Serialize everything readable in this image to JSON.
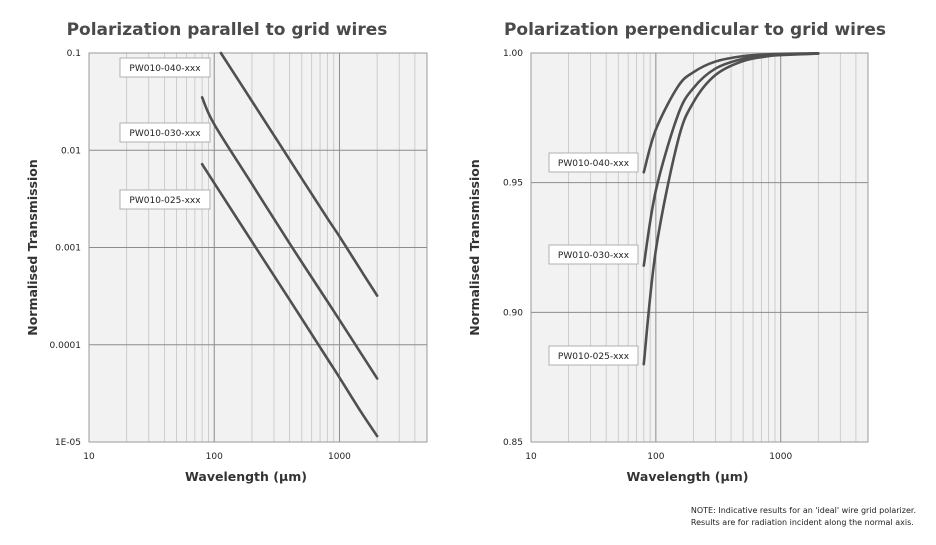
{
  "chart_data": [
    {
      "type": "line",
      "title": "Polarization parallel to grid wires",
      "xlabel": "Wavelength (µm)",
      "ylabel": "Normalised Transmission",
      "x_scale": "log",
      "y_scale": "log",
      "xlim": [
        10,
        5000
      ],
      "ylim": [
        1e-05,
        0.1
      ],
      "x_ticks": [
        10,
        100,
        1000
      ],
      "x_tick_labels": [
        "10",
        "100",
        "1000"
      ],
      "y_ticks": [
        0.1,
        0.01,
        0.001,
        0.0001,
        1e-05
      ],
      "y_tick_labels": [
        "0.1",
        "0.01",
        "0.001",
        "0.0001",
        "1E-05"
      ],
      "grid": true,
      "series": [
        {
          "name": "PW010-040-xxx",
          "x": [
            113,
            200,
            400,
            800,
            1000,
            1500,
            2000
          ],
          "y": [
            0.1,
            0.032,
            0.008,
            0.002,
            0.0013,
            0.00057,
            0.00032
          ]
        },
        {
          "name": "PW010-030-xxx",
          "x": [
            80,
            100,
            200,
            400,
            800,
            1000,
            1500,
            2000
          ],
          "y": [
            0.035,
            0.0185,
            0.0045,
            0.0011,
            0.00028,
            0.00018,
            8e-05,
            4.5e-05
          ]
        },
        {
          "name": "PW010-025-xxx",
          "x": [
            80,
            100,
            200,
            400,
            800,
            1000,
            1500,
            2000
          ],
          "y": [
            0.0072,
            0.0046,
            0.00115,
            0.00029,
            7.2e-05,
            4.6e-05,
            2e-05,
            1.15e-05
          ]
        }
      ]
    },
    {
      "type": "line",
      "title": "Polarization perpendicular to grid wires",
      "xlabel": "Wavelength (µm)",
      "ylabel": "Normalised Transmission",
      "x_scale": "log",
      "y_scale": "linear",
      "xlim": [
        10,
        5000
      ],
      "ylim": [
        0.85,
        1.0
      ],
      "x_ticks": [
        10,
        100,
        1000
      ],
      "x_tick_labels": [
        "10",
        "100",
        "1000"
      ],
      "y_ticks": [
        1.0,
        0.95,
        0.9,
        0.85
      ],
      "y_tick_labels": [
        "1.00",
        "0.95",
        "0.90",
        "0.85"
      ],
      "grid": true,
      "series": [
        {
          "name": "PW010-040-xxx",
          "x": [
            80,
            100,
            150,
            200,
            300,
            500,
            800,
            1000,
            2000
          ],
          "y": [
            0.954,
            0.9705,
            0.987,
            0.9926,
            0.9967,
            0.9988,
            0.9995,
            0.9997,
            0.9999
          ]
        },
        {
          "name": "PW010-030-xxx",
          "x": [
            80,
            100,
            150,
            200,
            300,
            500,
            800,
            1000,
            2000
          ],
          "y": [
            0.918,
            0.947,
            0.976,
            0.9865,
            0.994,
            0.9978,
            0.9991,
            0.9994,
            0.9998
          ]
        },
        {
          "name": "PW010-025-xxx",
          "x": [
            80,
            100,
            150,
            200,
            300,
            500,
            800,
            1000,
            2000
          ],
          "y": [
            0.88,
            0.924,
            0.966,
            0.981,
            0.9915,
            0.9969,
            0.9988,
            0.9992,
            0.9998
          ]
        }
      ]
    }
  ],
  "note": {
    "line1": "NOTE: Indicative results for an 'ideal' wire grid polarizer.",
    "line2": "Results are for radiation incident along the normal axis."
  },
  "colors": {
    "plot_bg": "#f2f2f2",
    "grid_major": "#8c8c8c",
    "grid_minor": "#c4c4c4",
    "line": "#505050",
    "label_border": "#b0b0b0"
  }
}
